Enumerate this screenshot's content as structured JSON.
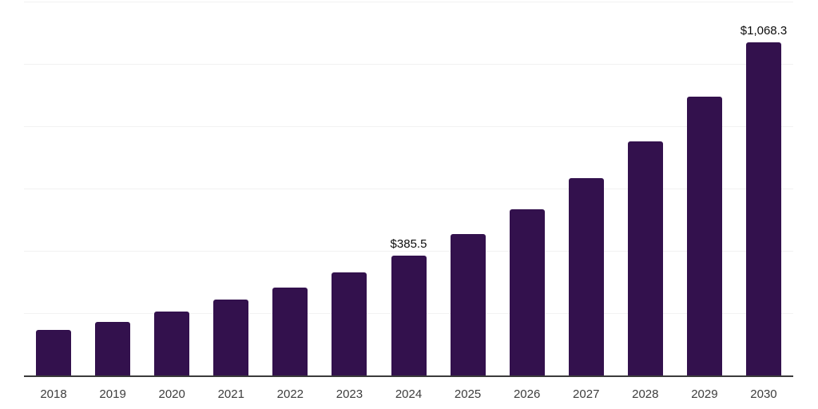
{
  "chart_data": {
    "type": "bar",
    "title": "",
    "xlabel": "",
    "ylabel": "",
    "categories": [
      "2018",
      "2019",
      "2020",
      "2021",
      "2022",
      "2023",
      "2024",
      "2025",
      "2026",
      "2027",
      "2028",
      "2029",
      "2030"
    ],
    "values": [
      147,
      172.5,
      205.5,
      244,
      282.5,
      331,
      385.5,
      454,
      533,
      633,
      750.5,
      896,
      1068.3
    ],
    "annotations": [
      {
        "index": 6,
        "text": "$385.5"
      },
      {
        "index": 12,
        "text": "$1,068.3"
      }
    ],
    "ylim": [
      0,
      1200
    ],
    "gridline_step": 200,
    "grid": true,
    "legend": false,
    "y_axis_tick_labels_visible": false
  },
  "colors": {
    "bar": "#33114d",
    "gridline": "#f2f2f2",
    "axis_line": "#3b3b3b",
    "value_label": "#0d0d0d",
    "tick_label": "#3d3d3d",
    "background": "#ffffff"
  }
}
